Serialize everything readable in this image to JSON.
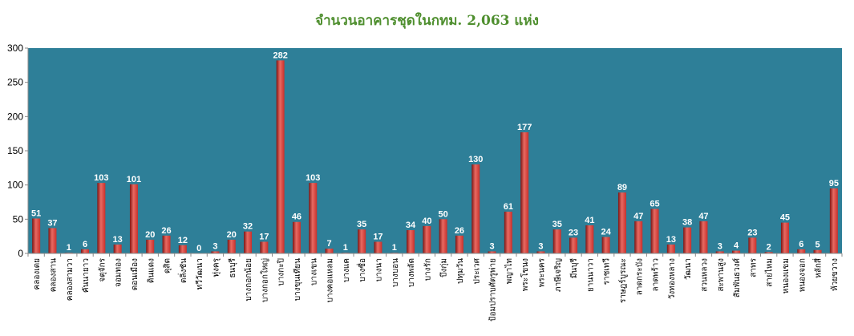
{
  "chart_data": {
    "type": "bar",
    "title": "จำนวนอาคารชุดในกทม. 2,063 แห่ง",
    "xlabel": "",
    "ylabel": "",
    "ylim": [
      0,
      300
    ],
    "yticks": [
      0,
      50,
      100,
      150,
      200,
      250,
      300
    ],
    "grid": false,
    "legend": "none",
    "colors": {
      "plot_bg": "#2e7f98",
      "bar": "#c8302c",
      "bar_dark": "#7e1513",
      "bar_light": "#e86a62",
      "label": "#ffffff",
      "title": "#4f8f2f"
    },
    "categories": [
      "คลองเตย",
      "คลองสาน",
      "คลองสามวา",
      "คันนายาว",
      "จตุจักร",
      "จอมทอง",
      "ดอนเมือง",
      "ดินแดง",
      "ดุสิต",
      "ตลิ่งชัน",
      "ทวีวัฒนา",
      "ทุ่งครุ",
      "ธนบุรี",
      "บางกอกน้อย",
      "บางกอกใหญ่",
      "บางกะปิ",
      "บางขุนเทียน",
      "บางเขน",
      "บางคอแหลม",
      "บางแค",
      "บางซื่อ",
      "บางนา",
      "บางบอน",
      "บางพลัด",
      "บางรัก",
      "บึงกุ่ม",
      "ปทุมวัน",
      "ประเวศ",
      "ป้อมปราบศัตรูพ่าย",
      "พญาไท",
      "พระโขนง",
      "พระนคร",
      "ภาษีเจริญ",
      "มีนบุรี",
      "ยานนาวา",
      "ราชเทวี",
      "ราษฎร์บูรณะ",
      "ลาดกระบัง",
      "ลาดพร้าว",
      "วังทองหลาง",
      "วัฒนา",
      "สวนหลวง",
      "สะพานสูง",
      "สัมพันธวงศ์",
      "สาทร",
      "สายไหม",
      "หนองแขม",
      "หนองจอก",
      "หลักสี่",
      "ห้วยขวาง"
    ],
    "values": [
      51,
      37,
      1,
      6,
      103,
      13,
      101,
      20,
      26,
      12,
      0,
      3,
      20,
      32,
      17,
      282,
      46,
      103,
      7,
      1,
      35,
      17,
      1,
      34,
      40,
      50,
      26,
      130,
      3,
      61,
      177,
      3,
      35,
      23,
      41,
      24,
      89,
      47,
      65,
      13,
      38,
      47,
      3,
      4,
      23,
      2,
      45,
      6,
      5,
      95
    ]
  }
}
